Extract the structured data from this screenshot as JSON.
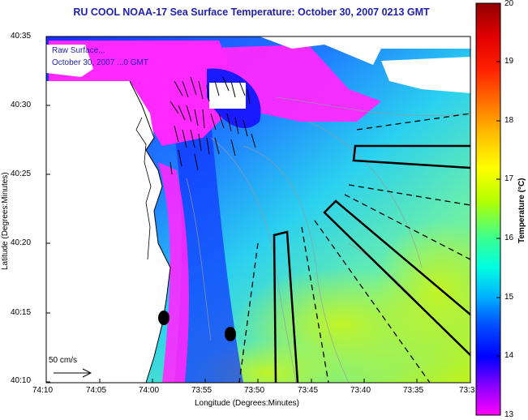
{
  "title": "RU COOL  NOAA-17  Sea Surface Temperature:  October 30, 2007 0213 GMT",
  "inset_text": {
    "line1": "Raw Surface...",
    "line2": "October 30, 2007 ...0 GMT"
  },
  "axes": {
    "ylabel": "Latitude (Degrees:Minutes)",
    "xlabel": "Longitude (Degrees:Minutes)",
    "y_ticks": [
      "40:35",
      "40:30",
      "40:25",
      "40:20",
      "40:15",
      "40:10"
    ],
    "x_ticks": [
      "74:10",
      "74:05",
      "74:00",
      "73:55",
      "73:50",
      "73:45",
      "73:40",
      "73:35",
      "73:3"
    ]
  },
  "colorbar": {
    "label": "Temperature (°C)",
    "ticks": [
      "20",
      "19",
      "18",
      "17",
      "16",
      "15",
      "14",
      "13"
    ],
    "min": 13,
    "max": 20
  },
  "scale_label": "50 cm/s",
  "colors": {
    "title": "#1f1fb0",
    "water_warm": "#c8f000",
    "water_cool": "#1030ff",
    "magenta": "#ff20ff",
    "land": "#ffffff"
  }
}
